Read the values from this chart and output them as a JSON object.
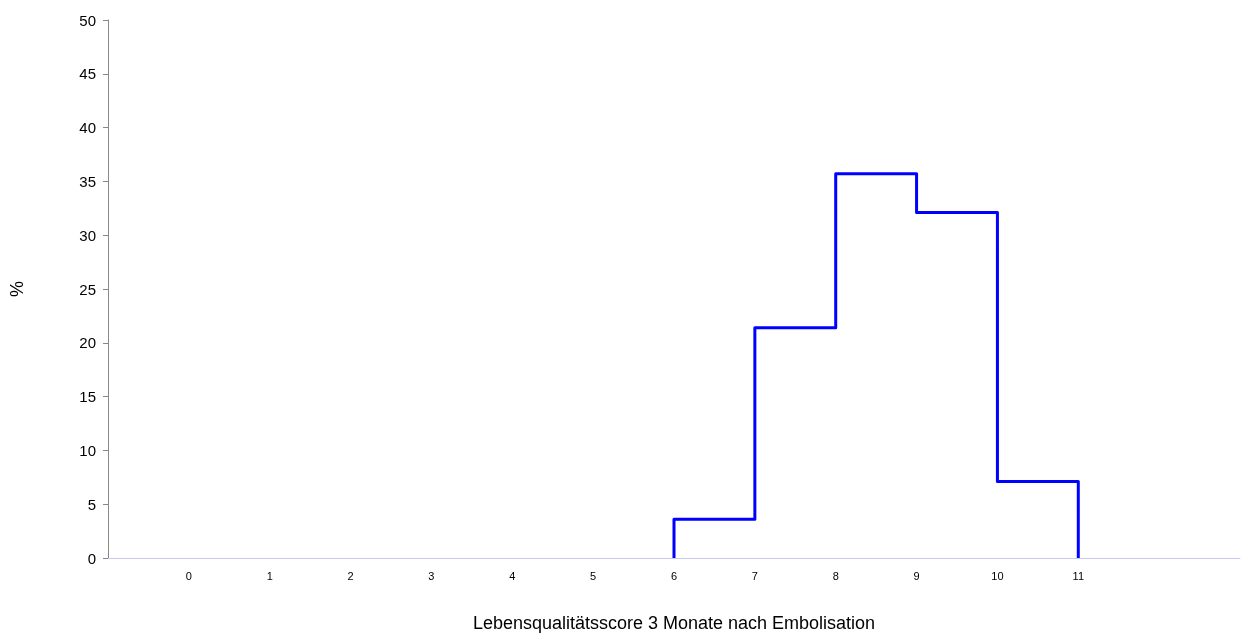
{
  "chart_data": {
    "type": "histogram",
    "xlabel": "Lebensqualitätsscore 3 Monate nach Embolisation",
    "ylabel": "%",
    "bins": [
      6,
      7,
      8,
      9,
      10,
      11
    ],
    "values": [
      3.6,
      21.4,
      35.7,
      32.1,
      7.1
    ],
    "color": "#0000ff",
    "xlim": [
      -1,
      13
    ],
    "xticks": [
      0,
      1,
      2,
      3,
      4,
      5,
      6,
      7,
      8,
      9,
      10,
      11
    ],
    "ylim": [
      0,
      50
    ],
    "yticks": [
      0,
      5,
      10,
      15,
      20,
      25,
      30,
      35,
      40,
      45,
      50
    ],
    "grid": false
  }
}
